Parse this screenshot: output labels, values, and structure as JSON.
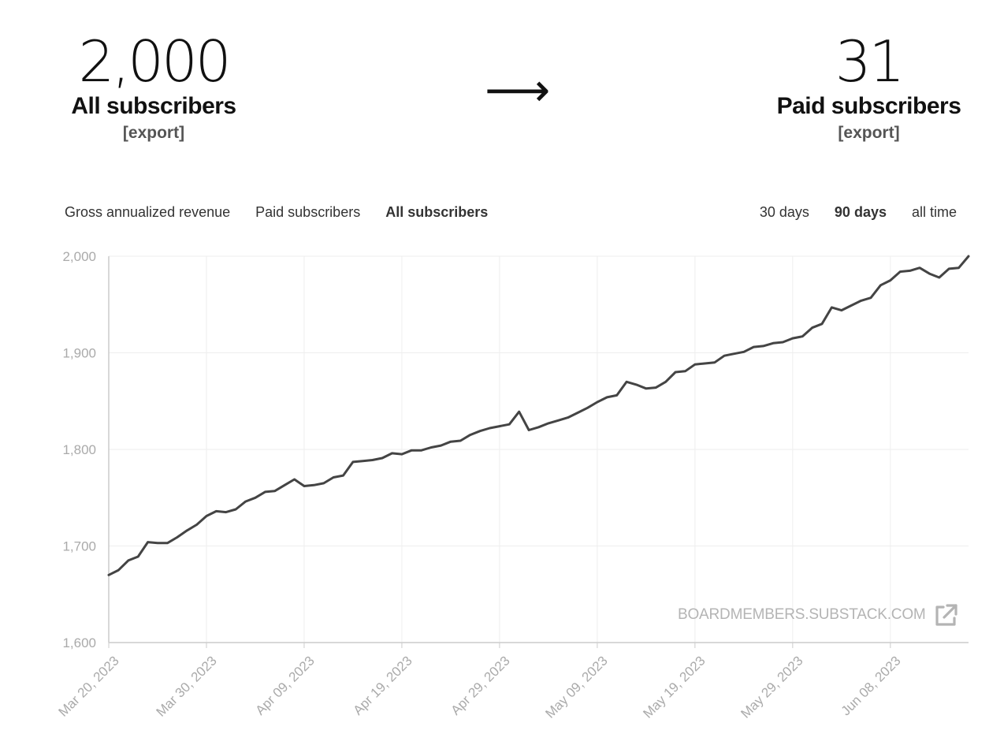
{
  "summary": {
    "all": {
      "value": "2,000",
      "label": "All subscribers",
      "export": "[export]"
    },
    "arrow": "⟶",
    "paid": {
      "value": "31",
      "label": "Paid subscribers",
      "export": "[export]"
    }
  },
  "metric_tabs": [
    {
      "label": "Gross annualized revenue",
      "active": false
    },
    {
      "label": "Paid subscribers",
      "active": false
    },
    {
      "label": "All subscribers",
      "active": true
    }
  ],
  "range_tabs": [
    {
      "label": "30 days",
      "active": false
    },
    {
      "label": "90 days",
      "active": true
    },
    {
      "label": "all time",
      "active": false
    }
  ],
  "watermark": {
    "text": "BOARDMEMBERS.SUBSTACK.COM",
    "icon": "external-link-icon"
  },
  "colors": {
    "line": "#444444",
    "grid": "#eeeeee",
    "axis": "#cccccc",
    "tick_text": "#aaaaaa",
    "watermark": "#b4b4b4"
  },
  "chart_data": {
    "type": "line",
    "title": "",
    "xlabel": "",
    "ylabel": "",
    "ylim": [
      1600,
      2000
    ],
    "y_ticks": [
      "2,000",
      "1,900",
      "1,800",
      "1,700",
      "1,600"
    ],
    "x_ticks": [
      "Mar 20, 2023",
      "Mar 30, 2023",
      "Apr 09, 2023",
      "Apr 19, 2023",
      "Apr 29, 2023",
      "May 09, 2023",
      "May 19, 2023",
      "May 29, 2023",
      "Jun 08, 2023"
    ],
    "grid": true,
    "series": [
      {
        "values": [
          1670,
          1675,
          1685,
          1689,
          1704,
          1703,
          1703,
          1709,
          1716,
          1722,
          1731,
          1736,
          1735,
          1738,
          1746,
          1750,
          1756,
          1757,
          1763,
          1769,
          1762,
          1763,
          1765,
          1771,
          1773,
          1787,
          1788,
          1789,
          1791,
          1796,
          1795,
          1799,
          1799,
          1802,
          1804,
          1808,
          1809,
          1815,
          1819,
          1822,
          1824,
          1826,
          1839,
          1820,
          1823,
          1827,
          1830,
          1833,
          1838,
          1843,
          1849,
          1854,
          1856,
          1870,
          1867,
          1863,
          1864,
          1870,
          1880,
          1881,
          1888,
          1889,
          1890,
          1897,
          1899,
          1901,
          1906,
          1907,
          1910,
          1911,
          1915,
          1917,
          1926,
          1930,
          1947,
          1944,
          1949,
          1954,
          1957,
          1970,
          1975,
          1984,
          1985,
          1988,
          1982,
          1978,
          1987,
          1988,
          2000
        ]
      }
    ]
  }
}
